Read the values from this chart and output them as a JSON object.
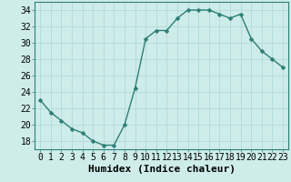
{
  "x": [
    0,
    1,
    2,
    3,
    4,
    5,
    6,
    7,
    8,
    9,
    10,
    11,
    12,
    13,
    14,
    15,
    16,
    17,
    18,
    19,
    20,
    21,
    22,
    23
  ],
  "y": [
    23,
    21.5,
    20.5,
    19.5,
    19,
    18,
    17.5,
    17.5,
    20,
    24.5,
    30.5,
    31.5,
    31.5,
    33,
    34,
    34,
    34,
    33.5,
    33,
    33.5,
    30.5,
    29,
    28,
    27
  ],
  "line_color": "#2d7f76",
  "marker": "D",
  "markersize": 2.5,
  "linewidth": 1.0,
  "bg_color": "#ceecea",
  "grid_color": "#b0dbd8",
  "title": "",
  "xlabel": "Humidex (Indice chaleur)",
  "ylabel": "",
  "ylim": [
    17,
    35
  ],
  "yticks": [
    18,
    20,
    22,
    24,
    26,
    28,
    30,
    32,
    34
  ],
  "xticks": [
    0,
    1,
    2,
    3,
    4,
    5,
    6,
    7,
    8,
    9,
    10,
    11,
    12,
    13,
    14,
    15,
    16,
    17,
    18,
    19,
    20,
    21,
    22,
    23
  ],
  "xlabel_fontsize": 8,
  "tick_fontsize": 7,
  "spine_color": "#2d7f76",
  "xlim": [
    -0.5,
    23.5
  ]
}
